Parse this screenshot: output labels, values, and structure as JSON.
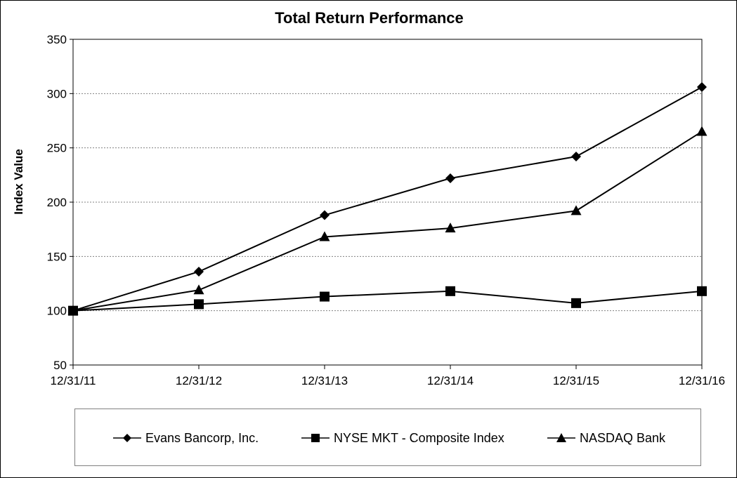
{
  "chart_data": {
    "type": "line",
    "title": "Total Return Performance",
    "ylabel": "Index Value",
    "xlabel": "",
    "categories": [
      "12/31/11",
      "12/31/12",
      "12/31/13",
      "12/31/14",
      "12/31/15",
      "12/31/16"
    ],
    "ylim": [
      50,
      350
    ],
    "yticks": [
      50,
      100,
      150,
      200,
      250,
      300,
      350
    ],
    "grid": "horizontal dotted",
    "legend_position": "bottom",
    "series": [
      {
        "name": "Evans Bancorp, Inc.",
        "marker": "diamond",
        "values": [
          100,
          136,
          188,
          222,
          242,
          306
        ]
      },
      {
        "name": "NYSE MKT - Composite Index",
        "marker": "square",
        "values": [
          100,
          106,
          113,
          118,
          107,
          118
        ]
      },
      {
        "name": "NASDAQ Bank",
        "marker": "triangle",
        "values": [
          100,
          119,
          168,
          176,
          192,
          265
        ]
      }
    ]
  },
  "colors": {
    "line": "#000000",
    "grid": "#808080",
    "background": "#ffffff"
  }
}
